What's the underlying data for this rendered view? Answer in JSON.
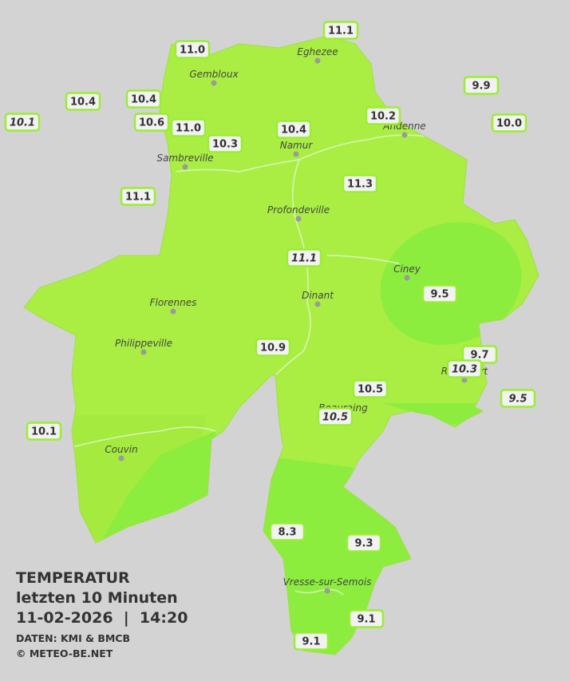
{
  "title": {
    "line1": "TEMPERATUR",
    "line2": "letzten 10 Minuten",
    "line3": "11-02-2026  |  14:20",
    "source": "DATEN: KMI & BMCB",
    "copyright": "© METEO-BE.NET"
  },
  "places": [
    {
      "name": "Eghezee"
    },
    {
      "name": "Gembloux"
    },
    {
      "name": "Andenne"
    },
    {
      "name": "Namur"
    },
    {
      "name": "Sambreville"
    },
    {
      "name": "Profondeville"
    },
    {
      "name": "Ciney"
    },
    {
      "name": "Dinant"
    },
    {
      "name": "Florennes"
    },
    {
      "name": "Philippeville"
    },
    {
      "name": "Rochefort"
    },
    {
      "name": "Beauraing"
    },
    {
      "name": "Couvin"
    },
    {
      "name": "Vresse-sur-Semois"
    }
  ],
  "stations": [
    {
      "label": "11.1",
      "italic": false
    },
    {
      "label": "11.0",
      "italic": false
    },
    {
      "label": "9.9",
      "italic": false
    },
    {
      "label": "10.4",
      "italic": false
    },
    {
      "label": "10.4",
      "italic": false
    },
    {
      "label": "10.1",
      "italic": true
    },
    {
      "label": "10.6",
      "italic": false
    },
    {
      "label": "11.0",
      "italic": false
    },
    {
      "label": "10.2",
      "italic": false
    },
    {
      "label": "10.0",
      "italic": false
    },
    {
      "label": "10.4",
      "italic": false
    },
    {
      "label": "10.3",
      "italic": false
    },
    {
      "label": "11.3",
      "italic": false
    },
    {
      "label": "11.1",
      "italic": false
    },
    {
      "label": "11.1",
      "italic": true
    },
    {
      "label": "9.5",
      "italic": false
    },
    {
      "label": "10.9",
      "italic": false
    },
    {
      "label": "9.7",
      "italic": false
    },
    {
      "label": "10.3",
      "italic": true
    },
    {
      "label": "10.5",
      "italic": false
    },
    {
      "label": "9.5",
      "italic": true
    },
    {
      "label": "10.5",
      "italic": true
    },
    {
      "label": "10.1",
      "italic": false
    },
    {
      "label": "8.3",
      "italic": false
    },
    {
      "label": "9.3",
      "italic": false
    },
    {
      "label": "9.1",
      "italic": false
    },
    {
      "label": "9.1",
      "italic": false
    }
  ]
}
